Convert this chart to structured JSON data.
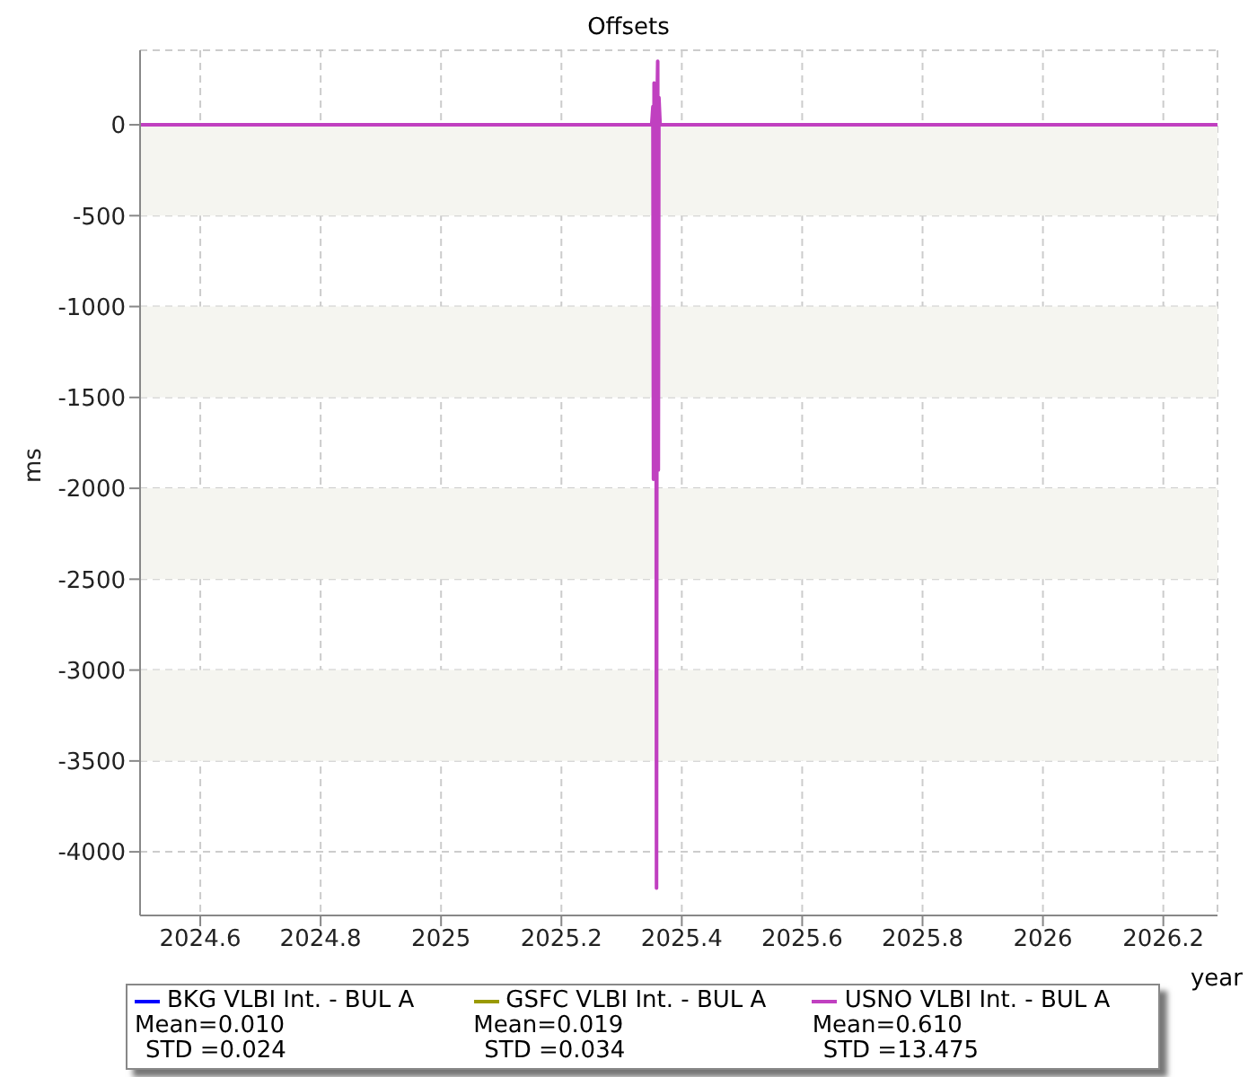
{
  "chart_data": {
    "type": "line",
    "title": "Offsets",
    "xlabel": "year",
    "ylabel": "ms",
    "x": [
      2024.5,
      2025.35,
      2025.352,
      2025.353,
      2025.354,
      2025.356,
      2025.357,
      2025.358,
      2025.359,
      2025.36,
      2025.361,
      2025.362,
      2025.364,
      2026.29
    ],
    "series": [
      {
        "name": "BKG VLBI Int. - BUL A",
        "color": "#0000ff",
        "values": [
          null,
          null,
          null,
          null,
          null,
          null,
          null,
          null,
          null,
          null,
          null,
          null,
          null,
          null
        ]
      },
      {
        "name": "GSFC VLBI Int. - BUL A",
        "color": "#9a9a00",
        "values": [
          null,
          null,
          null,
          null,
          null,
          null,
          null,
          null,
          null,
          null,
          null,
          null,
          null,
          null
        ]
      },
      {
        "name": "USNO VLBI Int. - BUL A",
        "color": "#c040c0",
        "values": [
          0,
          0,
          100,
          -1950,
          230,
          -1900,
          170,
          -4200,
          120,
          350,
          -1900,
          150,
          0,
          0
        ]
      }
    ],
    "annotations": [
      "Mean=0.010",
      "STD =0.024",
      "Mean=0.019",
      "STD =0.034",
      "Mean=0.610",
      "STD =13.475"
    ],
    "xlim": [
      2024.5,
      2026.29
    ],
    "xticks": [
      2024.6,
      2024.8,
      2025,
      2025.2,
      2025.4,
      2025.6,
      2025.8,
      2026,
      2026.2
    ],
    "ylim": [
      -4350,
      410
    ],
    "yticks": [
      0,
      -500,
      -1000,
      -1500,
      -2000,
      -2500,
      -3000,
      -3500,
      -4000
    ],
    "bands": [
      {
        "axis": "y",
        "from": -500,
        "to": 0,
        "color": "#f5f5f0"
      },
      {
        "axis": "y",
        "from": -1500,
        "to": -1000,
        "color": "#f5f5f0"
      },
      {
        "axis": "y",
        "from": -2500,
        "to": -2000,
        "color": "#f5f5f0"
      },
      {
        "axis": "y",
        "from": -3500,
        "to": -3000,
        "color": "#f5f5f0"
      }
    ],
    "grid": true,
    "legend": "bottom",
    "marker": "none",
    "line_style": "solid"
  }
}
